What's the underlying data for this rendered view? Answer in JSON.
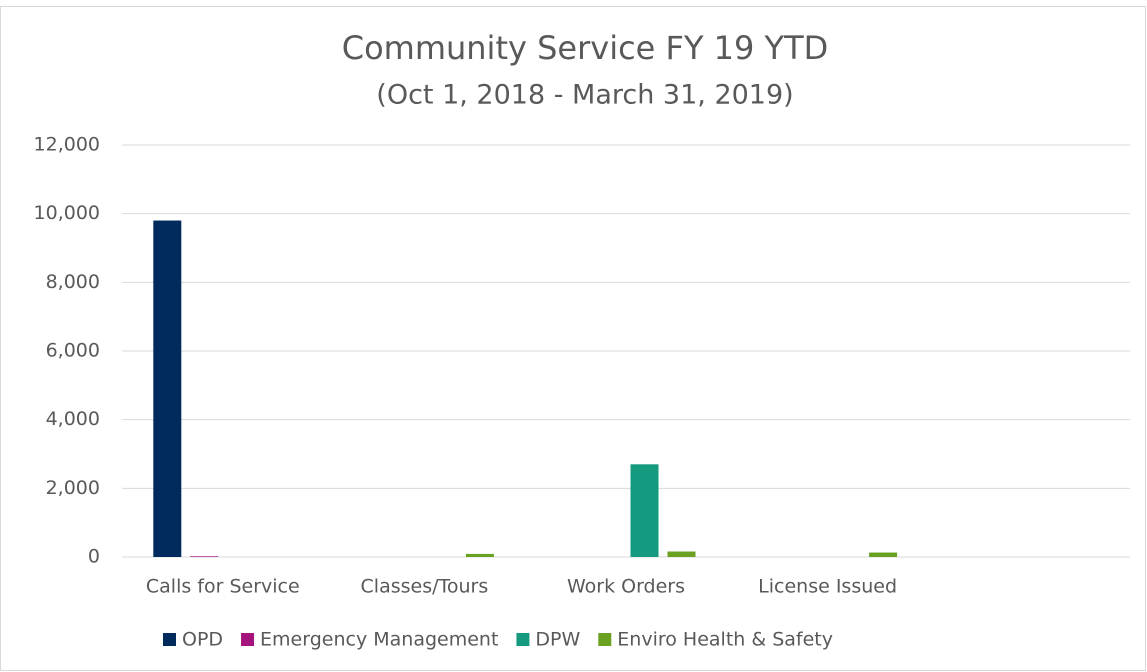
{
  "chart_data": {
    "type": "bar",
    "title": "Community Service FY 19 YTD",
    "subtitle": "(Oct 1, 2018 - March 31, 2019)",
    "categories": [
      "Calls for Service",
      "Classes/Tours",
      "Work Orders",
      "License Issued",
      null
    ],
    "series": [
      {
        "name": "OPD",
        "color": "#002b5c",
        "values": [
          9800,
          0,
          0,
          0,
          null
        ]
      },
      {
        "name": "Emergency Management",
        "color": "#a5147d",
        "values": [
          20,
          0,
          0,
          0,
          null
        ]
      },
      {
        "name": "DPW",
        "color": "#159a80",
        "values": [
          0,
          0,
          2700,
          0,
          null
        ]
      },
      {
        "name": "Enviro Health & Safety",
        "color": "#6aa121",
        "values": [
          0,
          90,
          160,
          130,
          null
        ]
      }
    ],
    "ylim": [
      0,
      12000
    ],
    "yticks": [
      0,
      {
        "value": 2000,
        "label": "2,000"
      },
      {
        "value": 4000,
        "label": "4,000"
      },
      {
        "value": 6000,
        "label": "6,000"
      },
      {
        "value": 8000,
        "label": "8,000"
      },
      {
        "value": 10000,
        "label": "10,000"
      },
      {
        "value": 12000,
        "label": "12,000"
      }
    ],
    "grid": true,
    "legend": "bottom"
  }
}
